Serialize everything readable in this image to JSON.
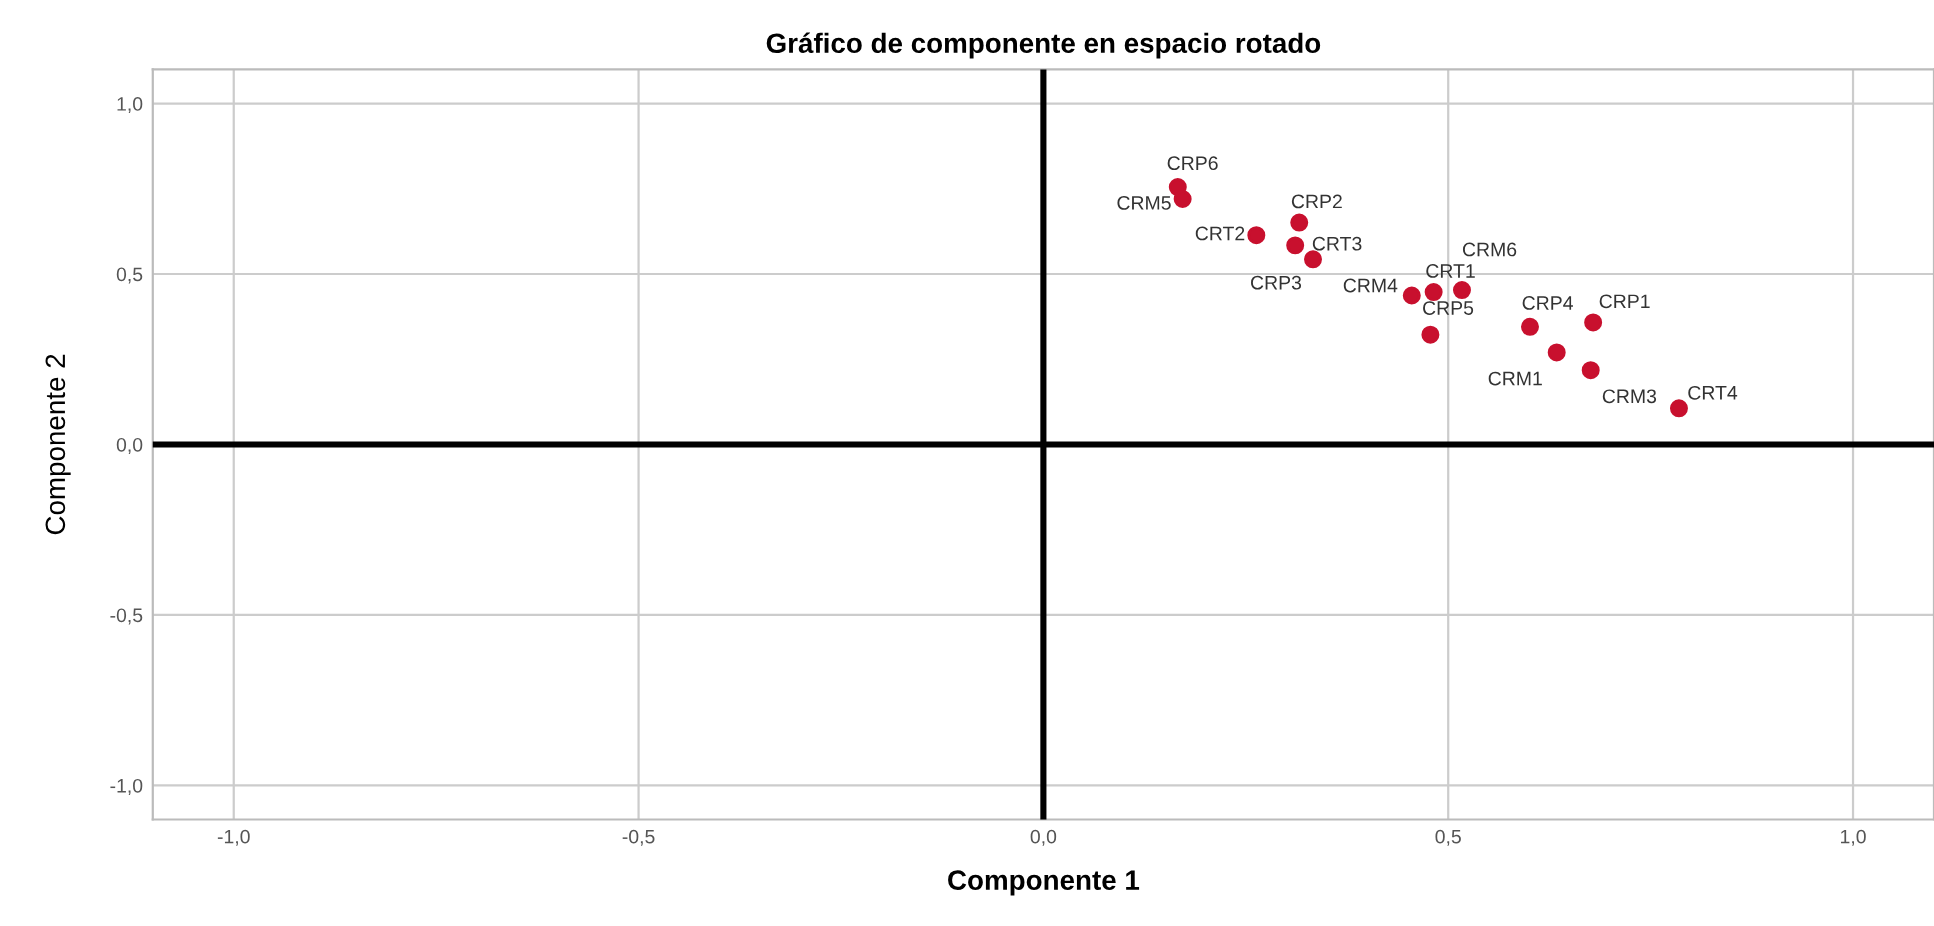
{
  "chart_data": {
    "type": "scatter",
    "title": "Gráfico de componente en espacio rotado",
    "xlabel": "Componente 1",
    "ylabel": "Componente 2",
    "x": [
      0.166,
      0.172,
      0.263,
      0.316,
      0.311,
      0.333,
      0.455,
      0.482,
      0.517,
      0.478,
      0.601,
      0.679,
      0.634,
      0.676,
      0.785
    ],
    "series": [
      {
        "color": "#c8102e",
        "values": [
          0.755,
          0.72,
          0.614,
          0.651,
          0.584,
          0.543,
          0.437,
          0.447,
          0.453,
          0.322,
          0.345,
          0.358,
          0.27,
          0.218,
          0.106
        ]
      }
    ],
    "annotations": [
      {
        "text": "CRP6",
        "x": 0.166,
        "y": 0.755
      },
      {
        "text": "CRM5",
        "x": 0.172,
        "y": 0.72
      },
      {
        "text": "CRT2",
        "x": 0.263,
        "y": 0.614
      },
      {
        "text": "CRP2",
        "x": 0.316,
        "y": 0.651
      },
      {
        "text": "CRT3",
        "x": 0.311,
        "y": 0.584
      },
      {
        "text": "CRP3",
        "x": 0.333,
        "y": 0.543
      },
      {
        "text": "CRM4",
        "x": 0.455,
        "y": 0.437
      },
      {
        "text": "CRT1",
        "x": 0.482,
        "y": 0.447
      },
      {
        "text": "CRM6",
        "x": 0.517,
        "y": 0.453
      },
      {
        "text": "CRP5",
        "x": 0.478,
        "y": 0.322
      },
      {
        "text": "CRP4",
        "x": 0.601,
        "y": 0.345
      },
      {
        "text": "CRP1",
        "x": 0.679,
        "y": 0.358
      },
      {
        "text": "CRM1",
        "x": 0.634,
        "y": 0.27
      },
      {
        "text": "CRM3",
        "x": 0.676,
        "y": 0.218
      },
      {
        "text": "CRT4",
        "x": 0.785,
        "y": 0.106
      }
    ],
    "xlim": [
      -1.1,
      1.1
    ],
    "ylim": [
      -1.1,
      1.1
    ],
    "xticks": [
      {
        "value": -1.0,
        "label": "-1,0"
      },
      {
        "value": -0.5,
        "label": "-0,5"
      },
      {
        "value": 0.0,
        "label": "0,0"
      },
      {
        "value": 0.5,
        "label": "0,5"
      },
      {
        "value": 1.0,
        "label": "1,0"
      }
    ],
    "yticks": [
      {
        "value": -1.0,
        "label": "-1,0"
      },
      {
        "value": -0.5,
        "label": "-0,5"
      },
      {
        "value": 0.0,
        "label": "0,0"
      },
      {
        "value": 0.5,
        "label": "0,5"
      },
      {
        "value": 1.0,
        "label": "1,0"
      }
    ],
    "grid": true,
    "marker": "circle",
    "legend": false
  }
}
